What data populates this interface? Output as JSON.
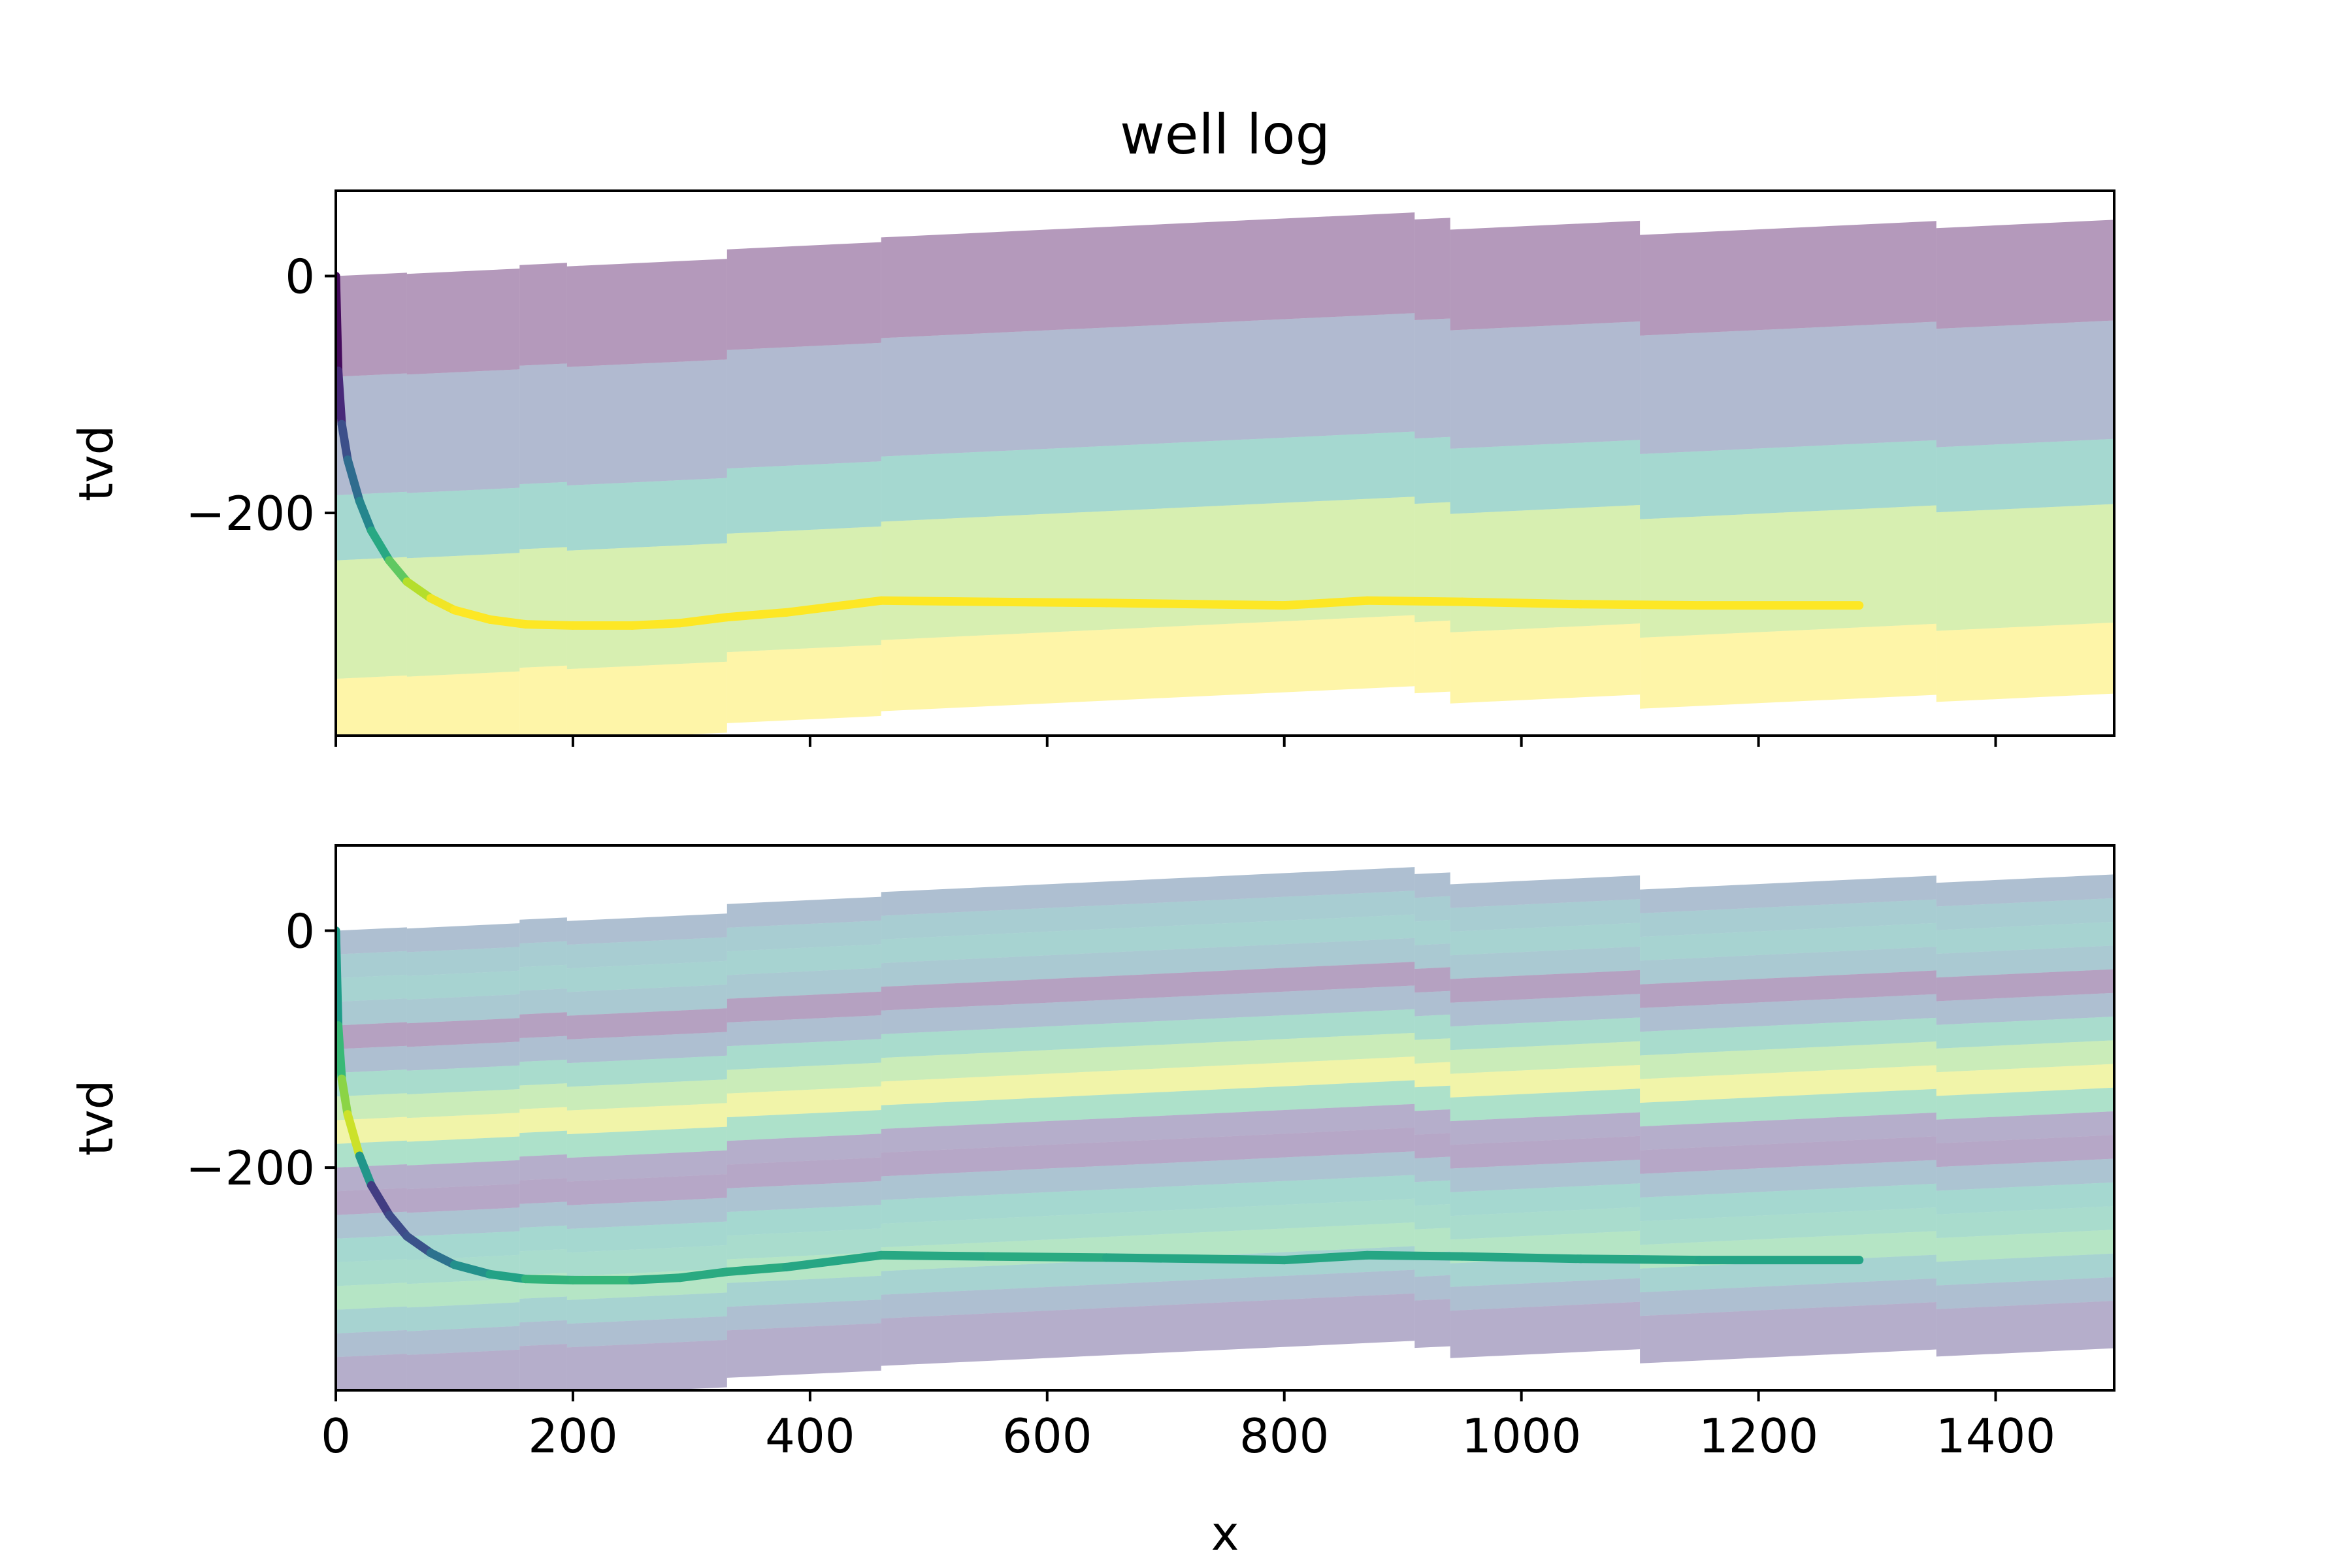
{
  "chart_data": [
    {
      "type": "area",
      "title": "well log",
      "xlabel": "",
      "ylabel": "tvd",
      "xlim": [
        0,
        1500
      ],
      "ylim": [
        -388,
        72
      ],
      "xticks": [
        0,
        200,
        400,
        600,
        800,
        1000,
        1200,
        1400
      ],
      "yticks": [
        0,
        -200
      ],
      "show_xticklabels": false,
      "grid": false,
      "colormap": "viridis",
      "strata": {
        "dip_per_x": 0.047,
        "fault_x": [
          60,
          155,
          195,
          330,
          460,
          910,
          940,
          1100,
          1350
        ],
        "fault_throw": [
          -1,
          3,
          -3,
          8,
          4,
          -6,
          -10,
          -12,
          -6
        ],
        "bands": [
          {
            "top": 0,
            "bottom": -85,
            "value": 0.0
          },
          {
            "top": -85,
            "bottom": -185,
            "value": 0.25
          },
          {
            "top": -185,
            "bottom": -240,
            "value": 0.55
          },
          {
            "top": -240,
            "bottom": -340,
            "value": 0.85
          },
          {
            "top": -340,
            "bottom": -400,
            "value": 1.0
          }
        ]
      },
      "well_path": {
        "x": [
          0,
          2,
          5,
          10,
          20,
          30,
          45,
          60,
          80,
          100,
          130,
          160,
          200,
          250,
          290,
          330,
          380,
          460,
          550,
          650,
          800,
          870,
          950,
          1050,
          1150,
          1285
        ],
        "y": [
          0,
          -80,
          -125,
          -155,
          -190,
          -215,
          -240,
          -258,
          -272,
          -282,
          -290,
          -294,
          -295,
          -295,
          -293,
          -288,
          -284,
          -274,
          -275,
          -276,
          -278,
          -274,
          -275,
          -277,
          -278,
          -278
        ],
        "values": [
          0.0,
          0.05,
          0.18,
          0.3,
          0.4,
          0.52,
          0.68,
          0.82,
          0.96,
          1.0,
          1.0,
          1.0,
          1.0,
          1.0,
          1.0,
          1.0,
          1.0,
          1.0,
          1.0,
          1.0,
          1.0,
          1.0,
          1.0,
          1.0,
          1.0,
          1.0
        ]
      }
    },
    {
      "type": "area",
      "title": "",
      "xlabel": "x",
      "ylabel": "tvd",
      "xlim": [
        0,
        1500
      ],
      "ylim": [
        -388,
        72
      ],
      "xticks": [
        0,
        200,
        400,
        600,
        800,
        1000,
        1200,
        1400
      ],
      "yticks": [
        0,
        -200
      ],
      "show_xticklabels": true,
      "grid": false,
      "colormap": "viridis",
      "strata": {
        "dip_per_x": 0.047,
        "fault_x": [
          60,
          155,
          195,
          330,
          460,
          910,
          940,
          1100,
          1350
        ],
        "fault_throw": [
          -1,
          3,
          -3,
          8,
          4,
          -6,
          -10,
          -12,
          -6
        ],
        "bands": [
          {
            "top": 0,
            "bottom": -20,
            "value": 0.3
          },
          {
            "top": -20,
            "bottom": -40,
            "value": 0.45
          },
          {
            "top": -40,
            "bottom": -60,
            "value": 0.5
          },
          {
            "top": -60,
            "bottom": -80,
            "value": 0.4
          },
          {
            "top": -80,
            "bottom": -100,
            "value": 0.05
          },
          {
            "top": -100,
            "bottom": -120,
            "value": 0.3
          },
          {
            "top": -120,
            "bottom": -140,
            "value": 0.6
          },
          {
            "top": -140,
            "bottom": -160,
            "value": 0.8
          },
          {
            "top": -160,
            "bottom": -180,
            "value": 0.95
          },
          {
            "top": -180,
            "bottom": -200,
            "value": 0.65
          },
          {
            "top": -200,
            "bottom": -220,
            "value": 0.15
          },
          {
            "top": -220,
            "bottom": -240,
            "value": 0.1
          },
          {
            "top": -240,
            "bottom": -260,
            "value": 0.35
          },
          {
            "top": -260,
            "bottom": -280,
            "value": 0.55
          },
          {
            "top": -280,
            "bottom": -300,
            "value": 0.6
          },
          {
            "top": -300,
            "bottom": -320,
            "value": 0.7
          },
          {
            "top": -320,
            "bottom": -340,
            "value": 0.5
          },
          {
            "top": -340,
            "bottom": -360,
            "value": 0.3
          },
          {
            "top": -360,
            "bottom": -400,
            "value": 0.15
          }
        ]
      },
      "well_path": {
        "x": [
          0,
          2,
          5,
          10,
          20,
          30,
          45,
          60,
          80,
          100,
          130,
          160,
          200,
          250,
          290,
          330,
          380,
          460,
          550,
          650,
          800,
          870,
          950,
          1050,
          1150,
          1285
        ],
        "y": [
          0,
          -80,
          -125,
          -155,
          -190,
          -215,
          -240,
          -258,
          -272,
          -282,
          -290,
          -294,
          -295,
          -295,
          -293,
          -288,
          -284,
          -274,
          -275,
          -276,
          -278,
          -274,
          -275,
          -277,
          -278,
          -278
        ],
        "values": [
          0.5,
          0.6,
          0.75,
          0.9,
          0.95,
          0.1,
          0.25,
          0.2,
          0.3,
          0.45,
          0.55,
          0.6,
          0.7,
          0.62,
          0.6,
          0.62,
          0.6,
          0.58,
          0.62,
          0.6,
          0.58,
          0.6,
          0.58,
          0.6,
          0.58,
          0.58
        ]
      }
    }
  ]
}
